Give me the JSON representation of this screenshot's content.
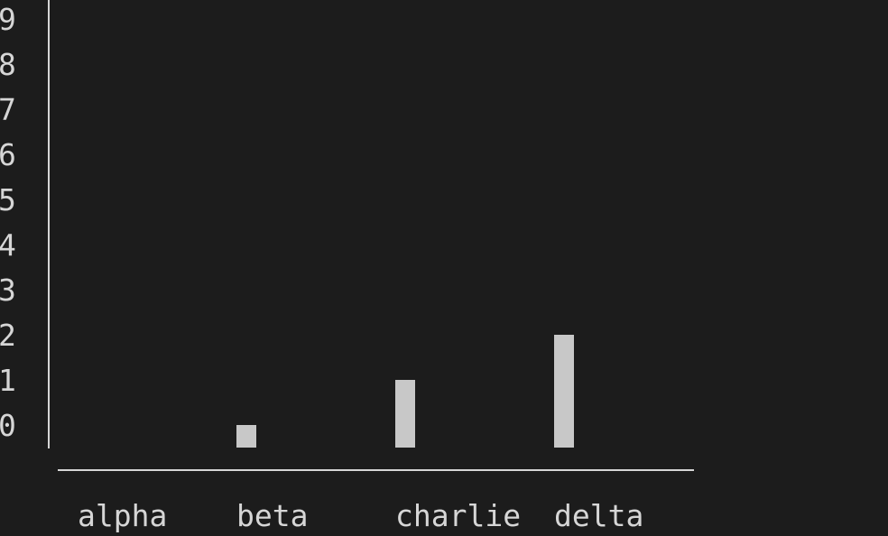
{
  "chart_data": {
    "type": "bar",
    "categories": [
      "alpha",
      "beta",
      "charlie",
      "delta"
    ],
    "values": [
      0,
      1,
      2,
      3
    ],
    "y_ticks": [
      "0",
      "1",
      "2",
      "3",
      "4",
      "5",
      "6",
      "7",
      "8",
      "9"
    ],
    "ylim": [
      0,
      9
    ],
    "title": "",
    "xlabel": "",
    "ylabel": "",
    "grid": false,
    "colors": {
      "background": "#1c1c1c",
      "bar": "#c8c8c8",
      "text": "#d6d6d6"
    }
  }
}
